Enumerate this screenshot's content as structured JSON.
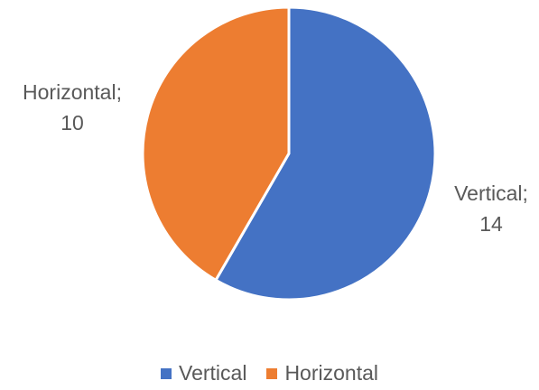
{
  "chart_data": {
    "type": "pie",
    "title": "",
    "categories": [
      "Vertical",
      "Horizontal"
    ],
    "values": [
      14,
      10
    ],
    "colors": [
      "#4472C4",
      "#ED7D31"
    ],
    "data_labels": [
      {
        "line1": "Vertical;",
        "line2": "14"
      },
      {
        "line1": "Horizontal;",
        "line2": "10"
      }
    ],
    "start_angle_deg": 0,
    "direction": "clockwise",
    "legend_position": "bottom",
    "slice_border_color": "#ffffff"
  }
}
